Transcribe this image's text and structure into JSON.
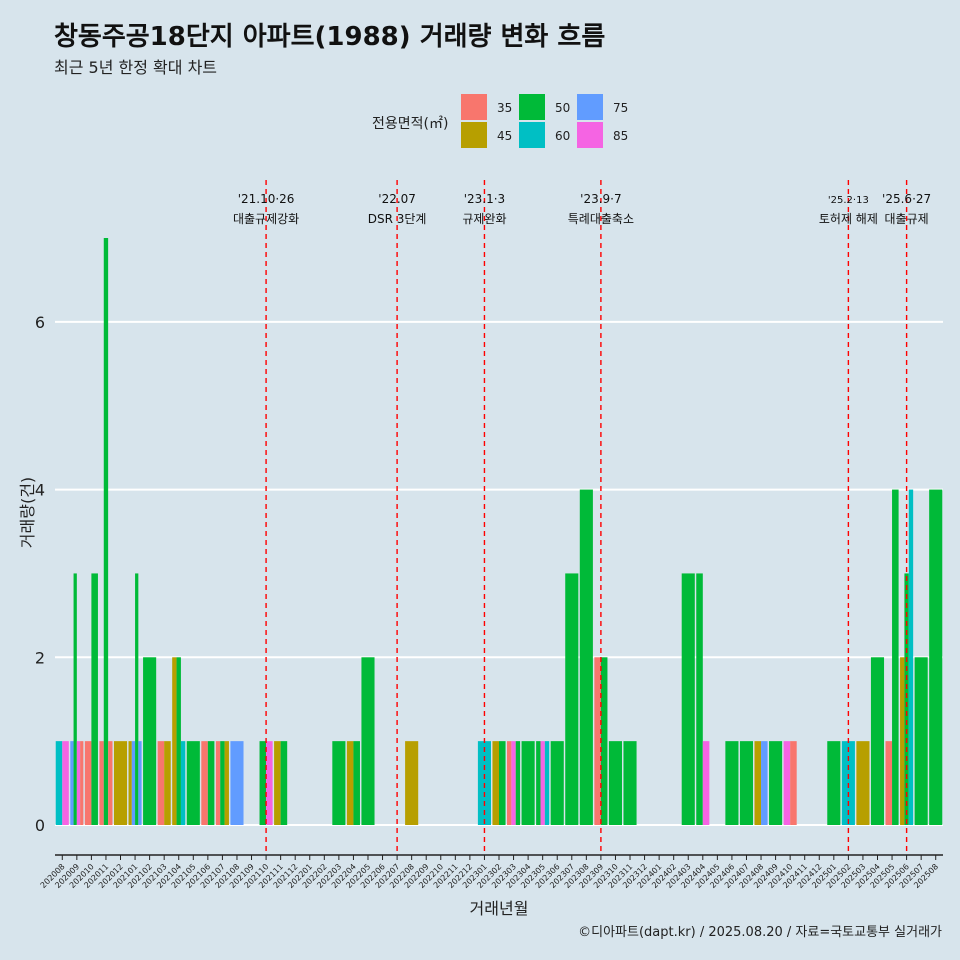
{
  "title": "창동주공18단지 아파트(1988) 거래량 변화 흐름",
  "subtitle": "최근 5년 한정 확대 차트",
  "caption": "©디아파트(dapt.kr) / 2025.08.20 / 자료=국토교통부 실거래가",
  "colors": {
    "background": "#d7e4ec",
    "grid": "#ffffff",
    "event_line": "#ff0000"
  },
  "chart_data": {
    "type": "bar",
    "stacked": false,
    "xlabel": "거래년월",
    "ylabel": "거래량(건)",
    "ylim": [
      -0.3,
      7.3
    ],
    "yticks": [
      0,
      2,
      4,
      6
    ],
    "grid": true,
    "legend": {
      "title": "전용면적(㎡)",
      "placement": "top",
      "entries": [
        {
          "name": "35",
          "color": "#f8766d"
        },
        {
          "name": "45",
          "color": "#b79f00"
        },
        {
          "name": "50",
          "color": "#00ba38"
        },
        {
          "name": "60",
          "color": "#00bfc4"
        },
        {
          "name": "75",
          "color": "#619cff"
        },
        {
          "name": "85",
          "color": "#f564e3"
        }
      ]
    },
    "categories": [
      "202008",
      "202009",
      "202010",
      "202011",
      "202012",
      "202101",
      "202102",
      "202103",
      "202104",
      "202105",
      "202106",
      "202107",
      "202108",
      "202109",
      "202110",
      "202111",
      "202112",
      "202201",
      "202202",
      "202203",
      "202204",
      "202205",
      "202206",
      "202207",
      "202208",
      "202209",
      "202210",
      "202211",
      "202212",
      "202301",
      "202302",
      "202303",
      "202304",
      "202305",
      "202306",
      "202307",
      "202308",
      "202309",
      "202310",
      "202311",
      "202312",
      "202401",
      "202402",
      "202403",
      "202404",
      "202405",
      "202406",
      "202407",
      "202408",
      "202409",
      "202410",
      "202411",
      "202412",
      "202501",
      "202502",
      "202503",
      "202504",
      "202505",
      "202506",
      "202507",
      "202508"
    ],
    "bars": [
      {
        "month": "202008",
        "area": "60",
        "count": 1
      },
      {
        "month": "202008",
        "area": "85",
        "count": 1
      },
      {
        "month": "202009",
        "area": "75",
        "count": 1
      },
      {
        "month": "202009",
        "area": "50",
        "count": 3
      },
      {
        "month": "202009",
        "area": "85",
        "count": 1
      },
      {
        "month": "202009",
        "area": "35",
        "count": 1
      },
      {
        "month": "202010",
        "area": "35",
        "count": 1
      },
      {
        "month": "202010",
        "area": "50",
        "count": 3
      },
      {
        "month": "202011",
        "area": "35",
        "count": 1
      },
      {
        "month": "202011",
        "area": "50",
        "count": 7
      },
      {
        "month": "202011",
        "area": "35",
        "count": 1
      },
      {
        "month": "202012",
        "area": "45",
        "count": 1
      },
      {
        "month": "202101",
        "area": "45",
        "count": 1
      },
      {
        "month": "202101",
        "area": "75",
        "count": 1
      },
      {
        "month": "202101",
        "area": "50",
        "count": 3
      },
      {
        "month": "202101",
        "area": "75",
        "count": 1
      },
      {
        "month": "202102",
        "area": "50",
        "count": 2
      },
      {
        "month": "202103",
        "area": "35",
        "count": 1
      },
      {
        "month": "202103",
        "area": "45",
        "count": 1
      },
      {
        "month": "202104",
        "area": "45",
        "count": 2
      },
      {
        "month": "202104",
        "area": "50",
        "count": 2
      },
      {
        "month": "202104",
        "area": "60",
        "count": 1
      },
      {
        "month": "202105",
        "area": "50",
        "count": 1
      },
      {
        "month": "202106",
        "area": "35",
        "count": 1
      },
      {
        "month": "202106",
        "area": "50",
        "count": 1
      },
      {
        "month": "202107",
        "area": "35",
        "count": 1
      },
      {
        "month": "202107",
        "area": "50",
        "count": 1
      },
      {
        "month": "202107",
        "area": "45",
        "count": 1
      },
      {
        "month": "202108",
        "area": "75",
        "count": 1
      },
      {
        "month": "202110",
        "area": "50",
        "count": 1
      },
      {
        "month": "202110",
        "area": "85",
        "count": 1
      },
      {
        "month": "202111",
        "area": "45",
        "count": 1
      },
      {
        "month": "202111",
        "area": "50",
        "count": 1
      },
      {
        "month": "202203",
        "area": "50",
        "count": 1
      },
      {
        "month": "202204",
        "area": "45",
        "count": 1
      },
      {
        "month": "202204",
        "area": "50",
        "count": 1
      },
      {
        "month": "202205",
        "area": "50",
        "count": 2
      },
      {
        "month": "202208",
        "area": "45",
        "count": 1
      },
      {
        "month": "202301",
        "area": "60",
        "count": 1
      },
      {
        "month": "202302",
        "area": "45",
        "count": 1
      },
      {
        "month": "202302",
        "area": "50",
        "count": 1
      },
      {
        "month": "202303",
        "area": "35",
        "count": 1
      },
      {
        "month": "202303",
        "area": "85",
        "count": 1
      },
      {
        "month": "202303",
        "area": "50",
        "count": 1
      },
      {
        "month": "202304",
        "area": "50",
        "count": 1
      },
      {
        "month": "202305",
        "area": "50",
        "count": 1
      },
      {
        "month": "202305",
        "area": "85",
        "count": 1
      },
      {
        "month": "202305",
        "area": "60",
        "count": 1
      },
      {
        "month": "202306",
        "area": "50",
        "count": 1
      },
      {
        "month": "202307",
        "area": "50",
        "count": 3
      },
      {
        "month": "202308",
        "area": "50",
        "count": 4
      },
      {
        "month": "202309",
        "area": "35",
        "count": 2
      },
      {
        "month": "202309",
        "area": "50",
        "count": 2
      },
      {
        "month": "202310",
        "area": "50",
        "count": 1
      },
      {
        "month": "202311",
        "area": "50",
        "count": 1
      },
      {
        "month": "202403",
        "area": "50",
        "count": 3
      },
      {
        "month": "202404",
        "area": "50",
        "count": 3
      },
      {
        "month": "202404",
        "area": "85",
        "count": 1
      },
      {
        "month": "202406",
        "area": "50",
        "count": 1
      },
      {
        "month": "202407",
        "area": "50",
        "count": 1
      },
      {
        "month": "202408",
        "area": "45",
        "count": 1
      },
      {
        "month": "202408",
        "area": "75",
        "count": 1
      },
      {
        "month": "202409",
        "area": "50",
        "count": 1
      },
      {
        "month": "202410",
        "area": "85",
        "count": 1
      },
      {
        "month": "202410",
        "area": "35",
        "count": 1
      },
      {
        "month": "202501",
        "area": "50",
        "count": 1
      },
      {
        "month": "202502",
        "area": "60",
        "count": 1
      },
      {
        "month": "202503",
        "area": "45",
        "count": 1
      },
      {
        "month": "202504",
        "area": "50",
        "count": 2
      },
      {
        "month": "202505",
        "area": "35",
        "count": 1
      },
      {
        "month": "202505",
        "area": "50",
        "count": 4
      },
      {
        "month": "202506",
        "area": "45",
        "count": 2
      },
      {
        "month": "202506",
        "area": "50",
        "count": 3
      },
      {
        "month": "202506",
        "area": "60",
        "count": 4
      },
      {
        "month": "202507",
        "area": "50",
        "count": 2
      },
      {
        "month": "202508",
        "area": "50",
        "count": 4
      }
    ],
    "annotations": [
      {
        "month": "202110",
        "date": "'21.10·26",
        "label": "대출규제강화"
      },
      {
        "month": "202207",
        "date": "'22.07",
        "label": "DSR 3단계"
      },
      {
        "month": "202301",
        "date": "'23.1·3",
        "label": "규제완화"
      },
      {
        "month": "202309",
        "date": "'23.9·7",
        "label": "특례대출축소"
      },
      {
        "month": "202502",
        "date": "'25.2·13",
        "label": "토허제 해제"
      },
      {
        "month": "202506",
        "date": "'25.6·27",
        "label": "대출규제"
      }
    ]
  }
}
